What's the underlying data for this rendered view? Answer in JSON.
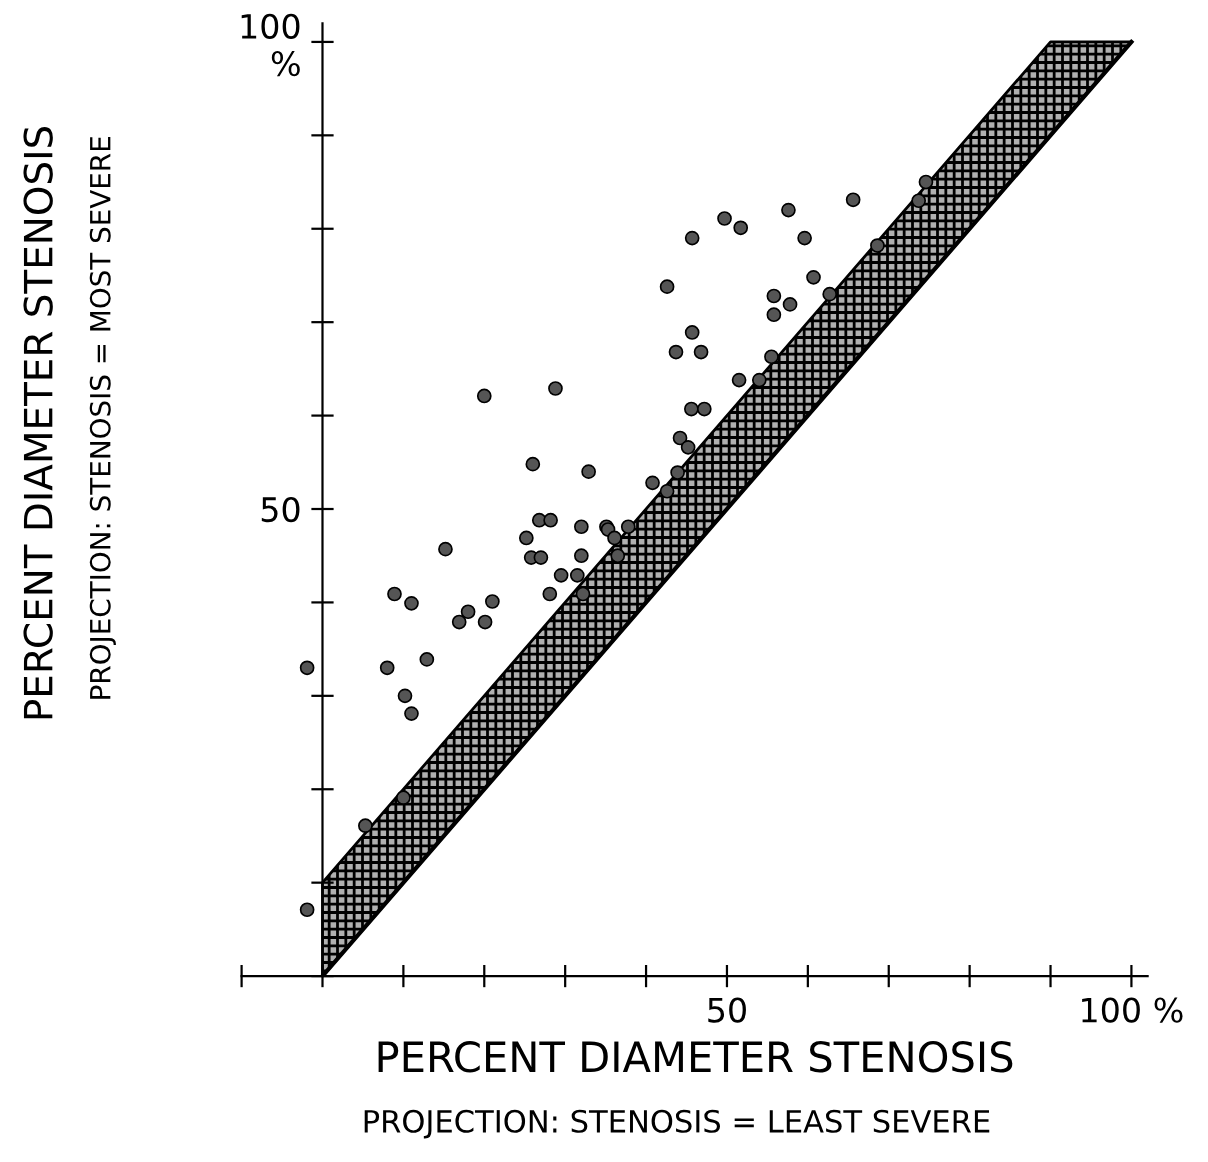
{
  "chart_data": {
    "type": "scatter",
    "xlabel": "PERCENT DIAMETER STENOSIS",
    "ylabel": "PERCENT DIAMETER STENOSIS",
    "annotations": [
      "PROJECTION: STENOSIS = LEAST SEVERE",
      "PROJECTION: STENOSIS = MOST SEVERE"
    ],
    "xlim": [
      -10,
      102
    ],
    "ylim": [
      0,
      102
    ],
    "xticks": [
      {
        "value": -10,
        "label": null
      },
      {
        "value": 0,
        "label": null
      },
      {
        "value": 10,
        "label": null
      },
      {
        "value": 20,
        "label": null
      },
      {
        "value": 30,
        "label": null
      },
      {
        "value": 40,
        "label": null
      },
      50,
      {
        "value": 60,
        "label": null
      },
      {
        "value": 70,
        "label": null
      },
      {
        "value": 80,
        "label": null
      },
      {
        "value": 90,
        "label": null
      },
      {
        "value": 100,
        "label": "100 %"
      }
    ],
    "yticks": [
      {
        "value": 0,
        "label": null
      },
      {
        "value": 10,
        "label": null
      },
      {
        "value": 20,
        "label": null
      },
      {
        "value": 30,
        "label": null
      },
      {
        "value": 40,
        "label": null
      },
      50,
      {
        "value": 60,
        "label": null
      },
      {
        "value": 70,
        "label": null
      },
      {
        "value": 80,
        "label": null
      },
      {
        "value": 90,
        "label": null
      },
      {
        "value": 100,
        "label": "100\n%"
      }
    ],
    "grid": false,
    "legend": false,
    "series": [
      {
        "type": "line",
        "color": "#000000",
        "marker": "none",
        "x": [
          0,
          90,
          100
        ],
        "values": [
          0,
          90,
          100
        ],
        "lower": [
          0,
          90,
          100
        ],
        "upper": [
          10,
          100,
          100
        ]
      },
      {
        "color": "#555555",
        "marker": "circle",
        "x": [
          74.6,
          73.7,
          65.6,
          57.6,
          49.7,
          51.7,
          45.7,
          59.6,
          68.6,
          60.7,
          42.6,
          62.7,
          55.8,
          57.8,
          55.8,
          45.7,
          43.7,
          46.8,
          55.5,
          51.5,
          54.0,
          20.0,
          28.8,
          45.6,
          47.2,
          44.2,
          45.2,
          26.0,
          32.9,
          43.9,
          40.8,
          42.6,
          26.8,
          28.2,
          32.0,
          35.1,
          37.8,
          25.2,
          25.8,
          27.0,
          35.3,
          36.1,
          32.0,
          15.2,
          36.5,
          29.5,
          31.5,
          28.1,
          32.2,
          21.0,
          18.0,
          16.9,
          20.1,
          8.9,
          11.0,
          12.9,
          8.0,
          -1.9,
          10.2,
          11.0,
          10.0,
          5.3,
          -1.9
        ],
        "values": [
          85.0,
          83.0,
          83.1,
          82.0,
          81.1,
          80.1,
          79.0,
          79.0,
          78.2,
          74.8,
          73.8,
          73.0,
          72.8,
          71.9,
          70.8,
          68.9,
          66.8,
          66.8,
          66.3,
          63.8,
          63.8,
          62.1,
          62.9,
          60.7,
          60.7,
          57.6,
          56.6,
          54.8,
          54.0,
          53.9,
          52.8,
          51.9,
          48.8,
          48.8,
          48.1,
          48.1,
          48.1,
          46.9,
          44.8,
          44.8,
          47.8,
          46.9,
          45.0,
          45.7,
          45.0,
          42.9,
          42.9,
          40.9,
          40.9,
          40.1,
          39.0,
          37.9,
          37.9,
          40.9,
          39.9,
          33.9,
          33.0,
          33.0,
          30.0,
          28.1,
          19.1,
          16.1,
          7.1
        ]
      }
    ]
  }
}
